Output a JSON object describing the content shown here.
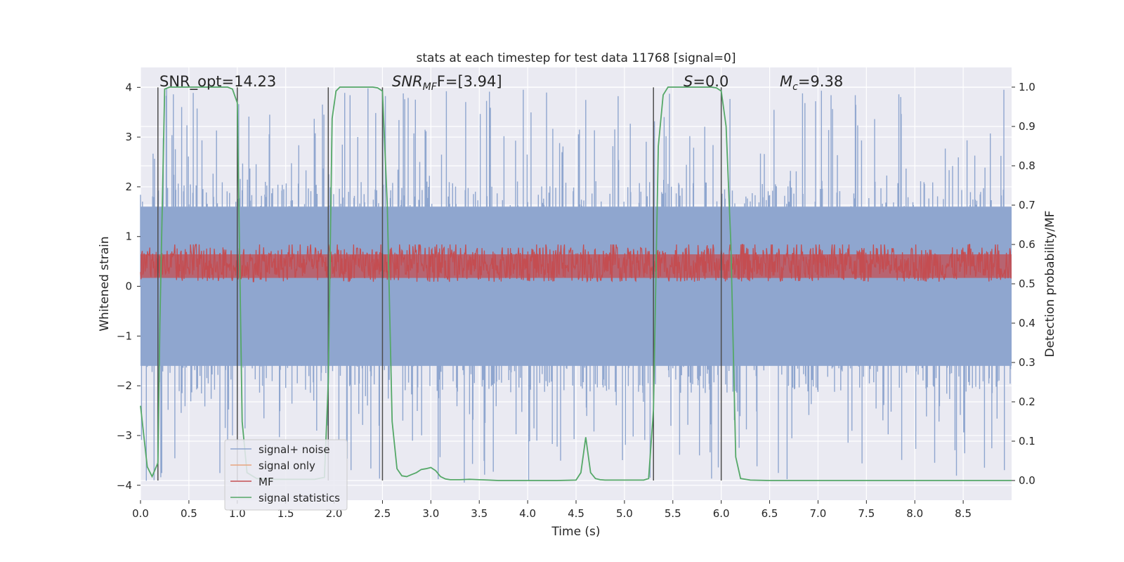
{
  "chart_data": {
    "type": "line",
    "title": "stats at each timestep for test data 11768 [signal=0]",
    "xlabel": "Time (s)",
    "ylabel_left": "Whitened strain",
    "ylabel_right": "Detection probability/MF",
    "xlim": [
      0,
      9.0
    ],
    "ylim_left": [
      -4.3,
      4.4
    ],
    "ylim_right": [
      -0.05,
      1.05
    ],
    "x_ticks": [
      0.0,
      0.5,
      1.0,
      1.5,
      2.0,
      2.5,
      3.0,
      3.5,
      4.0,
      4.5,
      5.0,
      5.5,
      6.0,
      6.5,
      7.0,
      7.5,
      8.0,
      8.5
    ],
    "x_tick_labels": [
      "0.0",
      "0.5",
      "1.0",
      "1.5",
      "2.0",
      "2.5",
      "3.0",
      "3.5",
      "4.0",
      "4.5",
      "5.0",
      "5.5",
      "6.0",
      "6.5",
      "7.0",
      "7.5",
      "8.0",
      "8.5"
    ],
    "y_ticks_left": [
      -4,
      -3,
      -2,
      -1,
      0,
      1,
      2,
      3,
      4
    ],
    "y_tick_labels_left": [
      "−4",
      "−3",
      "−2",
      "−1",
      "0",
      "1",
      "2",
      "3",
      "4"
    ],
    "y_ticks_right": [
      0.0,
      0.1,
      0.2,
      0.3,
      0.4,
      0.5,
      0.6,
      0.7,
      0.8,
      0.9,
      1.0
    ],
    "y_tick_labels_right": [
      "0.0",
      "0.1",
      "0.2",
      "0.3",
      "0.4",
      "0.5",
      "0.6",
      "0.7",
      "0.8",
      "0.9",
      "1.0"
    ],
    "grid": true,
    "legend_position": "lower-left",
    "annotations": {
      "snr_opt": "SNR_opt=14.23",
      "snr_mf_main": "SNR",
      "snr_mf_sub": "MF",
      "snr_mf_rest": "F=[3.94]",
      "s_main": "S",
      "s_rest": "=0.0",
      "mc_main": "M",
      "mc_sub": "c",
      "mc_rest": "=9.38"
    },
    "vertical_lines_x": [
      0.18,
      1.0,
      1.94,
      2.5,
      5.3,
      6.0
    ],
    "noise": {
      "sample_interval": 0.005,
      "core_abs": 1.6,
      "spike_max_positive": 4.0,
      "spike_min_negative": -3.95
    },
    "series": [
      {
        "name": "signal+ noise",
        "color": "#8fa6cf"
      },
      {
        "name": "signal only",
        "color": "#e8a47e"
      },
      {
        "name": "MF",
        "color": "#c44e52",
        "axis": "right",
        "baseline": 0.505,
        "band": [
          0.5,
          0.63
        ],
        "peak_max": 0.6
      },
      {
        "name": "signal statistics",
        "color": "#55a868",
        "axis": "right",
        "x": [
          0.0,
          0.07,
          0.12,
          0.18,
          0.2,
          0.25,
          0.3,
          0.4,
          0.5,
          0.6,
          0.7,
          0.8,
          0.9,
          0.95,
          1.0,
          1.05,
          1.1,
          1.2,
          1.4,
          1.6,
          1.8,
          1.9,
          1.94,
          1.98,
          2.02,
          2.06,
          2.1,
          2.2,
          2.3,
          2.4,
          2.45,
          2.5,
          2.55,
          2.6,
          2.65,
          2.7,
          2.75,
          2.8,
          2.85,
          2.9,
          2.95,
          3.0,
          3.05,
          3.1,
          3.15,
          3.2,
          3.3,
          3.4,
          3.5,
          3.6,
          3.7,
          4.0,
          4.3,
          4.5,
          4.55,
          4.6,
          4.65,
          4.7,
          4.75,
          4.8,
          5.0,
          5.2,
          5.25,
          5.3,
          5.35,
          5.4,
          5.45,
          5.5,
          5.7,
          5.9,
          5.95,
          6.0,
          6.05,
          6.1,
          6.15,
          6.2,
          6.3,
          6.5,
          7.0,
          8.0,
          9.0
        ],
        "y": [
          0.19,
          0.035,
          0.01,
          0.045,
          0.4,
          0.995,
          1.0,
          1.0,
          1.0,
          1.0,
          1.0,
          1.0,
          1.0,
          0.995,
          0.96,
          0.15,
          0.02,
          0.005,
          0.003,
          0.003,
          0.003,
          0.008,
          0.25,
          0.92,
          0.99,
          1.0,
          1.0,
          1.0,
          1.0,
          1.0,
          0.998,
          0.99,
          0.7,
          0.15,
          0.03,
          0.012,
          0.01,
          0.015,
          0.02,
          0.028,
          0.03,
          0.033,
          0.025,
          0.01,
          0.004,
          0.002,
          0.002,
          0.003,
          0.002,
          0.001,
          0.0,
          0.0,
          0.0,
          0.001,
          0.02,
          0.11,
          0.02,
          0.005,
          0.002,
          0.001,
          0.001,
          0.001,
          0.005,
          0.18,
          0.85,
          0.98,
          1.0,
          1.0,
          1.0,
          1.0,
          0.998,
          0.99,
          0.9,
          0.6,
          0.06,
          0.005,
          0.001,
          0.0,
          0.0,
          0.0,
          0.0
        ]
      }
    ]
  }
}
